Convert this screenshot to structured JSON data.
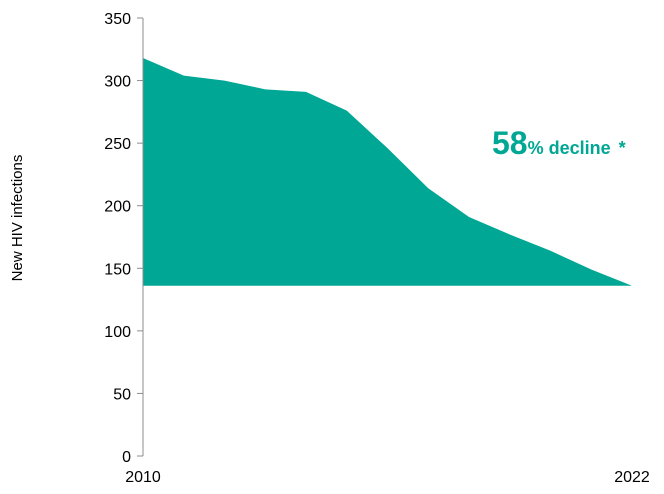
{
  "chart_data": {
    "type": "area",
    "title": "",
    "xlabel": "",
    "ylabel": "New HIV infections",
    "x": [
      2010,
      2011,
      2012,
      2013,
      2014,
      2015,
      2016,
      2017,
      2018,
      2019,
      2020,
      2021,
      2022
    ],
    "x_tick_labels": [
      "2010",
      "2022"
    ],
    "y_ticks": [
      "0",
      "50",
      "100",
      "150",
      "200",
      "250",
      "300",
      "350"
    ],
    "ylim": [
      0,
      350
    ],
    "baseline": 136,
    "series": [
      {
        "values": [
          318,
          304,
          300,
          293,
          291,
          276,
          246,
          214,
          191,
          177,
          164,
          149,
          136
        ],
        "color": "#00a794"
      }
    ],
    "annotation": {
      "value_text": "58",
      "suffix_text": "% decline",
      "marker_text": "*",
      "color": "#00a794"
    },
    "grid": false,
    "legend": "none"
  }
}
